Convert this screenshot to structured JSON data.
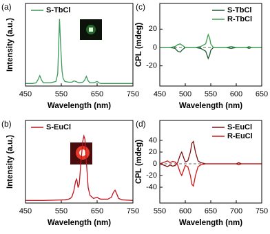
{
  "chart_data": [
    {
      "type": "line",
      "panel_label": "(a)",
      "xlabel": "Wavelength (nm)",
      "ylabel": "Intensity (a.u.)",
      "x": [
        450,
        470,
        480,
        485,
        490,
        495,
        500,
        520,
        535,
        540,
        545,
        548,
        552,
        555,
        560,
        570,
        580,
        585,
        590,
        595,
        600,
        610,
        615,
        620,
        625,
        630,
        640,
        645,
        650,
        655,
        660,
        680,
        700,
        750
      ],
      "series": [
        {
          "name": "S-TbCl",
          "color": "#3a9a5a",
          "values": [
            0,
            0,
            1,
            6,
            12,
            5,
            1,
            1,
            3,
            15,
            100,
            60,
            20,
            8,
            3,
            2,
            2,
            4,
            3,
            2,
            1,
            2,
            5,
            11,
            4,
            1,
            1,
            2,
            3,
            1,
            0,
            0,
            0,
            0
          ]
        }
      ],
      "xlim": [
        450,
        750
      ],
      "ylim": [
        -4,
        124
      ],
      "xticks": [
        450,
        550,
        650,
        750
      ],
      "legend": "upper left"
    },
    {
      "type": "line",
      "panel_label": "(b)",
      "xlabel": "Wavelength (nm)",
      "ylabel": "Intensity (a.u.)",
      "x": [
        450,
        500,
        560,
        570,
        575,
        580,
        585,
        590,
        593,
        597,
        600,
        605,
        610,
        613,
        616,
        620,
        625,
        630,
        640,
        645,
        650,
        655,
        660,
        680,
        690,
        695,
        700,
        705,
        710,
        720,
        750
      ],
      "series": [
        {
          "name": "S-EuCl",
          "color": "#c0141c",
          "values": [
            0,
            0,
            1,
            2,
            3,
            6,
            15,
            30,
            33,
            20,
            25,
            60,
            92,
            100,
            95,
            60,
            20,
            8,
            3,
            4,
            5,
            3,
            2,
            2,
            5,
            12,
            16,
            10,
            3,
            1,
            0
          ]
        }
      ],
      "xlim": [
        450,
        750
      ],
      "ylim": [
        -4,
        124
      ],
      "xticks": [
        450,
        550,
        650,
        750
      ],
      "legend": "upper left"
    },
    {
      "type": "line",
      "panel_label": "(c)",
      "xlabel": "Wavelength (nm)",
      "ylabel": "CPL (mdeg)",
      "x": [
        450,
        470,
        480,
        485,
        490,
        495,
        500,
        520,
        530,
        540,
        545,
        548,
        550,
        555,
        560,
        580,
        590,
        600,
        620,
        625,
        630,
        650
      ],
      "series": [
        {
          "name": "S-TbCl",
          "color": "#1e5a36",
          "values": [
            0,
            0,
            -1,
            -4,
            -5,
            -2,
            0,
            0,
            -1,
            -4,
            -12,
            -8,
            -3,
            0,
            0,
            0,
            -1,
            0,
            0,
            -1,
            0,
            0
          ]
        },
        {
          "name": "R-TbCl",
          "color": "#3aa04a",
          "values": [
            0,
            0,
            1,
            3,
            4,
            2,
            0,
            0,
            1,
            4,
            14,
            10,
            4,
            0,
            0,
            0,
            1,
            0,
            0,
            1,
            0,
            0
          ]
        }
      ],
      "xlim": [
        450,
        650
      ],
      "ylim": [
        -42,
        48
      ],
      "xticks": [
        450,
        500,
        550,
        600,
        650
      ],
      "yticks": [
        -20,
        0,
        20
      ],
      "zeroline": true,
      "legend": "upper right"
    },
    {
      "type": "line",
      "panel_label": "(d)",
      "xlabel": "Wavelength (nm)",
      "ylabel": "CPL (mdeg)",
      "x": [
        550,
        560,
        565,
        570,
        575,
        580,
        585,
        590,
        593,
        597,
        600,
        605,
        610,
        613,
        616,
        620,
        625,
        630,
        640,
        650,
        700,
        705,
        710,
        750
      ],
      "series": [
        {
          "name": "S-EuCl",
          "color": "#7a1010",
          "values": [
            0,
            -3,
            -5,
            -2,
            -4,
            -3,
            2,
            15,
            20,
            10,
            3,
            5,
            20,
            35,
            38,
            20,
            5,
            2,
            0,
            0,
            0,
            2,
            0,
            0
          ]
        },
        {
          "name": "R-EuCl",
          "color": "#d01818",
          "values": [
            0,
            3,
            5,
            2,
            4,
            3,
            -2,
            -15,
            -20,
            -10,
            -3,
            -5,
            -20,
            -35,
            -38,
            -20,
            -5,
            -2,
            0,
            0,
            0,
            -2,
            0,
            0
          ]
        }
      ],
      "xlim": [
        550,
        750
      ],
      "ylim": [
        -67,
        74
      ],
      "xticks": [
        550,
        600,
        650,
        700,
        750
      ],
      "yticks": [
        -40,
        -20,
        0,
        20,
        40
      ],
      "zeroline": true,
      "legend": "upper right"
    }
  ]
}
